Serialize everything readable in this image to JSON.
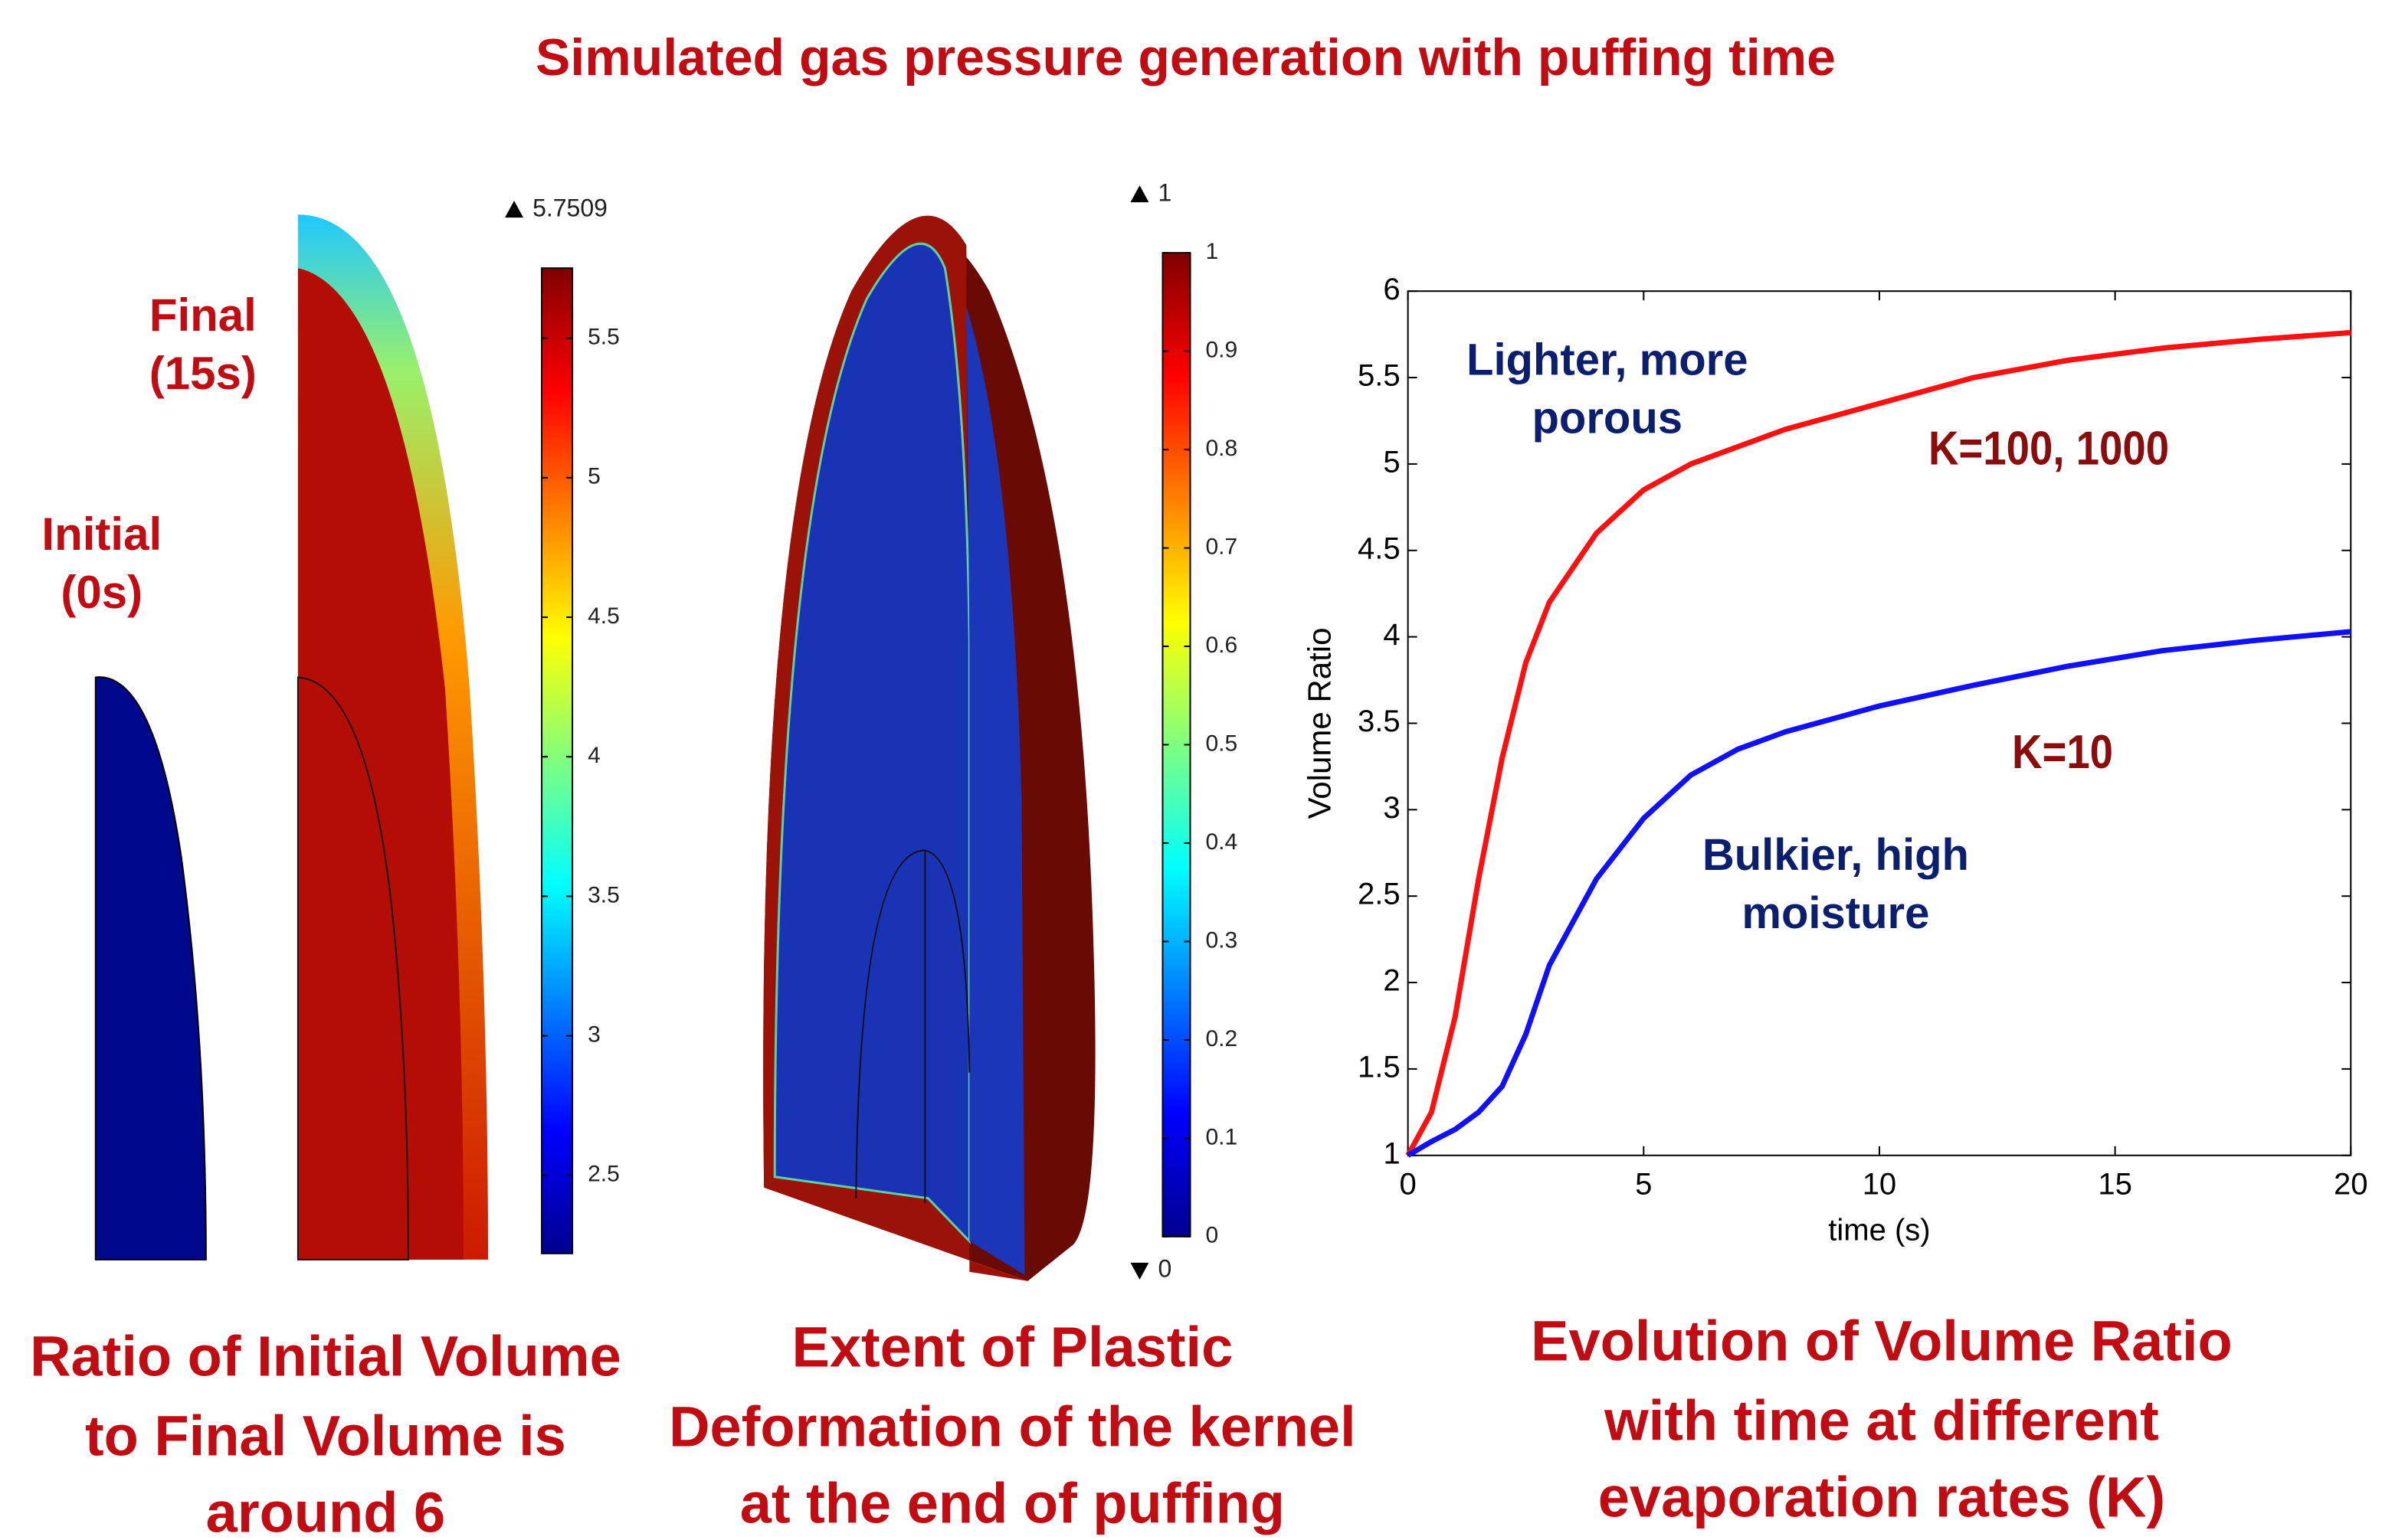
{
  "title": "Simulated gas pressure generation with puffing time",
  "panel_labels": [
    [
      "Final",
      "(15s)"
    ],
    [
      "Initial",
      "(0s)"
    ]
  ],
  "captions": [
    [
      "Ratio of Initial Volume",
      "to Final Volume is",
      "around 6"
    ],
    [
      "Extent of Plastic",
      "Deformation of the kernel",
      "at the end of puffing"
    ],
    [
      "Evolution of Volume Ratio",
      "with time at different",
      "evaporation rates (K)"
    ]
  ],
  "colorbars": [
    {
      "max_label": 5.7509,
      "lim": [
        2.22,
        5.7509
      ],
      "ticks": [
        2.5,
        3,
        3.5,
        4,
        4.5,
        5,
        5.5
      ]
    },
    {
      "max_label": 1,
      "min_label": 0,
      "lim": [
        0,
        1
      ],
      "ticks": [
        0,
        0.1,
        0.2,
        0.3,
        0.4,
        0.5,
        0.6,
        0.7,
        0.8,
        0.9,
        1
      ]
    }
  ],
  "chart_data": {
    "type": "line",
    "x_label": "time (s)",
    "y_label": "Volume Ratio",
    "x": [
      0,
      0.5,
      1,
      1.5,
      2,
      2.5,
      3,
      4,
      5,
      6,
      7,
      8,
      10,
      12,
      14,
      16,
      18,
      20
    ],
    "series": [
      {
        "name": "K=100, 1000",
        "color": "#ff1010",
        "values": [
          1,
          1.25,
          1.8,
          2.6,
          3.3,
          3.85,
          4.2,
          4.6,
          4.85,
          5.0,
          5.1,
          5.2,
          5.35,
          5.5,
          5.6,
          5.67,
          5.72,
          5.76
        ]
      },
      {
        "name": "K=10",
        "color": "#1010ff",
        "values": [
          1,
          1.08,
          1.15,
          1.25,
          1.4,
          1.7,
          2.1,
          2.6,
          2.95,
          3.2,
          3.35,
          3.45,
          3.6,
          3.72,
          3.83,
          3.92,
          3.98,
          4.03
        ]
      }
    ],
    "annotations": [
      {
        "lines": [
          "Lighter, more",
          "porous"
        ],
        "color": "#0c1f6e"
      },
      {
        "lines": [
          "Bulkier, high",
          "moisture"
        ],
        "color": "#0c1f6e"
      }
    ],
    "xlim": [
      0,
      20
    ],
    "xticks": [
      0,
      5,
      10,
      15,
      20
    ],
    "ylim": [
      1,
      6
    ],
    "yticks": [
      1,
      1.5,
      2,
      2.5,
      3,
      3.5,
      4,
      4.5,
      5,
      5.5,
      6
    ],
    "grid": false
  }
}
